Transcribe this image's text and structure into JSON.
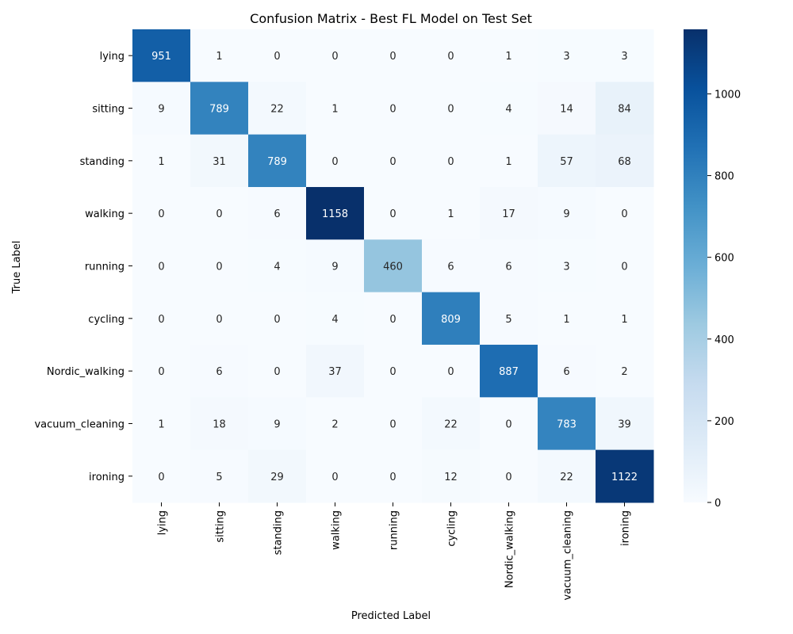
{
  "chart_data": {
    "type": "heatmap",
    "title": "Confusion Matrix - Best FL Model on Test Set",
    "xlabel": "Predicted Label",
    "ylabel": "True Label",
    "rows": [
      "lying",
      "sitting",
      "standing",
      "walking",
      "running",
      "cycling",
      "Nordic_walking",
      "vacuum_cleaning",
      "ironing"
    ],
    "columns": [
      "lying",
      "sitting",
      "standing",
      "walking",
      "running",
      "cycling",
      "Nordic_walking",
      "vacuum_cleaning",
      "ironing"
    ],
    "values": [
      [
        951,
        1,
        0,
        0,
        0,
        0,
        1,
        3,
        3
      ],
      [
        9,
        789,
        22,
        1,
        0,
        0,
        4,
        14,
        84
      ],
      [
        1,
        31,
        789,
        0,
        0,
        0,
        1,
        57,
        68
      ],
      [
        0,
        0,
        6,
        1158,
        0,
        1,
        17,
        9,
        0
      ],
      [
        0,
        0,
        4,
        9,
        460,
        6,
        6,
        3,
        0
      ],
      [
        0,
        0,
        0,
        4,
        0,
        809,
        5,
        1,
        1
      ],
      [
        0,
        6,
        0,
        37,
        0,
        0,
        887,
        6,
        2
      ],
      [
        1,
        18,
        9,
        2,
        0,
        22,
        0,
        783,
        39
      ],
      [
        0,
        5,
        29,
        0,
        0,
        12,
        0,
        22,
        1122
      ]
    ],
    "colorbar": {
      "range": [
        0,
        1158
      ],
      "ticks": [
        0,
        200,
        400,
        600,
        800,
        1000
      ],
      "colormap": "Blues"
    }
  }
}
